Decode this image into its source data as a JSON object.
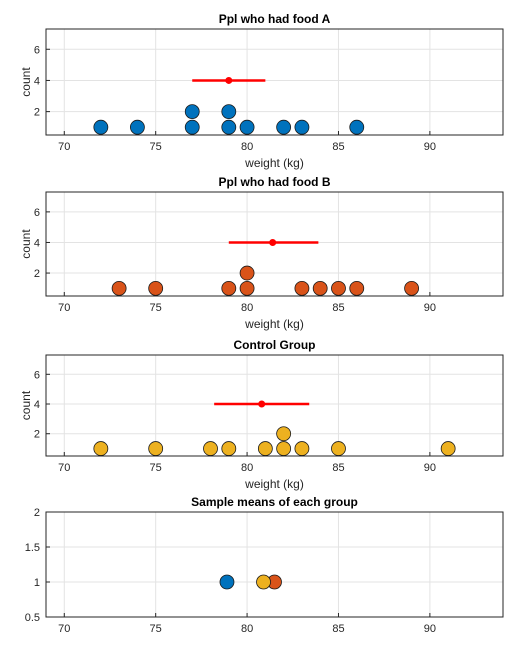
{
  "chart_data": [
    {
      "type": "scatter",
      "title": "Ppl who had food A",
      "xlabel": "weight (kg)",
      "ylabel": "count",
      "xlim": [
        69,
        94
      ],
      "ylim": [
        0.5,
        7.3
      ],
      "xticks": [
        "70",
        "75",
        "80",
        "85",
        "90"
      ],
      "yticks": [
        "2",
        "4",
        "6"
      ],
      "grid": true,
      "color": "#0072BD",
      "points": [
        {
          "x": 72,
          "y": 1
        },
        {
          "x": 74,
          "y": 1
        },
        {
          "x": 77,
          "y": 1
        },
        {
          "x": 77,
          "y": 2
        },
        {
          "x": 79,
          "y": 1
        },
        {
          "x": 79,
          "y": 2
        },
        {
          "x": 80,
          "y": 1
        },
        {
          "x": 82,
          "y": 1
        },
        {
          "x": 83,
          "y": 1
        },
        {
          "x": 86,
          "y": 1
        }
      ],
      "mean": {
        "x": 79,
        "y": 4,
        "low": 77,
        "high": 81,
        "color": "#FF0000"
      }
    },
    {
      "type": "scatter",
      "title": "Ppl who had food B",
      "xlabel": "weight (kg)",
      "ylabel": "count",
      "xlim": [
        69,
        94
      ],
      "ylim": [
        0.5,
        7.3
      ],
      "xticks": [
        "70",
        "75",
        "80",
        "85",
        "90"
      ],
      "yticks": [
        "2",
        "4",
        "6"
      ],
      "grid": true,
      "color": "#D95319",
      "points": [
        {
          "x": 73,
          "y": 1
        },
        {
          "x": 75,
          "y": 1
        },
        {
          "x": 79,
          "y": 1
        },
        {
          "x": 80,
          "y": 1
        },
        {
          "x": 80,
          "y": 2
        },
        {
          "x": 83,
          "y": 1
        },
        {
          "x": 84,
          "y": 1
        },
        {
          "x": 85,
          "y": 1
        },
        {
          "x": 86,
          "y": 1
        },
        {
          "x": 89,
          "y": 1
        }
      ],
      "mean": {
        "x": 81.4,
        "y": 4,
        "low": 79,
        "high": 83.9,
        "color": "#FF0000"
      }
    },
    {
      "type": "scatter",
      "title": "Control Group",
      "xlabel": "weight (kg)",
      "ylabel": "count",
      "xlim": [
        69,
        94
      ],
      "ylim": [
        0.5,
        7.3
      ],
      "xticks": [
        "70",
        "75",
        "80",
        "85",
        "90"
      ],
      "yticks": [
        "2",
        "4",
        "6"
      ],
      "grid": true,
      "color": "#EDB120",
      "points": [
        {
          "x": 72,
          "y": 1
        },
        {
          "x": 75,
          "y": 1
        },
        {
          "x": 78,
          "y": 1
        },
        {
          "x": 79,
          "y": 1
        },
        {
          "x": 81,
          "y": 1
        },
        {
          "x": 82,
          "y": 1
        },
        {
          "x": 82,
          "y": 2
        },
        {
          "x": 83,
          "y": 1
        },
        {
          "x": 85,
          "y": 1
        },
        {
          "x": 91,
          "y": 1
        }
      ],
      "mean": {
        "x": 80.8,
        "y": 4,
        "low": 78.2,
        "high": 83.4,
        "color": "#FF0000"
      }
    },
    {
      "type": "scatter",
      "title": "Sample means of each group",
      "xlabel": "",
      "ylabel": "",
      "xlim": [
        69,
        94
      ],
      "ylim": [
        0.5,
        2
      ],
      "xticks": [
        "70",
        "75",
        "80",
        "85",
        "90"
      ],
      "yticks": [
        "0.5",
        "1",
        "1.5",
        "2"
      ],
      "grid": true,
      "points": [
        {
          "x": 78.9,
          "y": 1,
          "color": "#0072BD"
        },
        {
          "x": 81.5,
          "y": 1,
          "color": "#D95319"
        },
        {
          "x": 80.9,
          "y": 1,
          "color": "#EDB120"
        }
      ]
    }
  ]
}
